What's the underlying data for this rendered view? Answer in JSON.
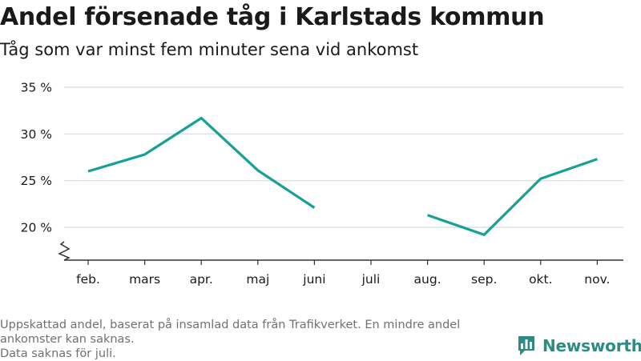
{
  "title": "Andel försenade tåg i Karlstads kommun",
  "subtitle": "Tåg som var minst fem minuter sena vid ankomst",
  "footnote": [
    "Uppskattad andel, baserat på insamlad data från Trafikverket. En mindre andel ankomster kan saknas.",
    "Data saknas för juli."
  ],
  "brand": {
    "name": "Newsworthy",
    "logo_icon": "bar-chart-bubble-icon"
  },
  "colors": {
    "line": "#16a096",
    "grid": "#d9d9d9",
    "axis": "#333333",
    "text": "#1a1a1a",
    "footnote": "#707070",
    "brand": "#2e8b83"
  },
  "chart_data": {
    "type": "line",
    "categories": [
      "feb.",
      "mars",
      "apr.",
      "maj",
      "juni",
      "juli",
      "aug.",
      "sep.",
      "okt.",
      "nov."
    ],
    "series": [
      {
        "values": [
          26.0,
          27.8,
          31.7,
          26.1,
          22.1,
          null,
          21.3,
          19.2,
          25.2,
          27.3
        ]
      }
    ],
    "yticks": [
      20,
      25,
      30,
      35
    ],
    "ytick_labels": [
      "20 %",
      "25 %",
      "30 %",
      "35 %"
    ],
    "ylim": [
      16.5,
      35
    ],
    "y_axis_break": true,
    "grid": "horizontal",
    "legend": "none"
  }
}
